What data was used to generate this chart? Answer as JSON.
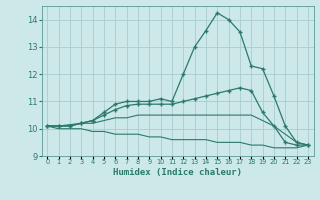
{
  "xlabel": "Humidex (Indice chaleur)",
  "bg_color": "#cce8e8",
  "line_color": "#2a7a6a",
  "grid_color": "#aacccc",
  "x_values": [
    0,
    1,
    2,
    3,
    4,
    5,
    6,
    7,
    8,
    9,
    10,
    11,
    12,
    13,
    14,
    15,
    16,
    17,
    18,
    19,
    20,
    21,
    22,
    23
  ],
  "line1": [
    10.1,
    10.1,
    10.1,
    10.2,
    10.3,
    10.6,
    10.9,
    11.0,
    11.0,
    11.0,
    11.1,
    11.0,
    12.0,
    13.0,
    13.6,
    14.25,
    14.0,
    13.55,
    12.3,
    12.2,
    11.2,
    10.1,
    9.5,
    9.4
  ],
  "line2": [
    10.1,
    10.1,
    10.1,
    10.2,
    10.3,
    10.5,
    10.7,
    10.85,
    10.9,
    10.9,
    10.9,
    10.9,
    11.0,
    11.1,
    11.2,
    11.3,
    11.4,
    11.5,
    11.4,
    10.6,
    10.1,
    9.5,
    9.4,
    9.4
  ],
  "line3": [
    10.1,
    10.1,
    10.15,
    10.2,
    10.2,
    10.3,
    10.4,
    10.4,
    10.5,
    10.5,
    10.5,
    10.5,
    10.5,
    10.5,
    10.5,
    10.5,
    10.5,
    10.5,
    10.5,
    10.3,
    10.1,
    9.8,
    9.5,
    9.4
  ],
  "line4": [
    10.1,
    10.0,
    10.0,
    10.0,
    9.9,
    9.9,
    9.8,
    9.8,
    9.8,
    9.7,
    9.7,
    9.6,
    9.6,
    9.6,
    9.6,
    9.5,
    9.5,
    9.5,
    9.4,
    9.4,
    9.3,
    9.3,
    9.3,
    9.4
  ],
  "ylim": [
    9.0,
    14.5
  ],
  "yticks": [
    9,
    10,
    11,
    12,
    13,
    14
  ],
  "xlim": [
    -0.5,
    23.5
  ]
}
